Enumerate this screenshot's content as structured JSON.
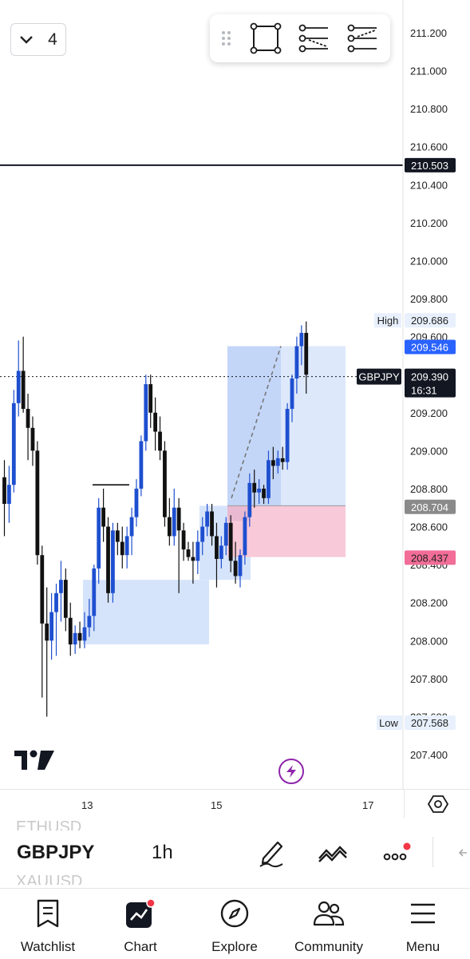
{
  "top_controls": {
    "interval_count": "4"
  },
  "drawing_toolbar": {
    "tools": [
      "drag-handle-icon",
      "rectangle-icon",
      "short-position-icon",
      "long-position-icon"
    ]
  },
  "price_axis": {
    "labels": [
      "211.200",
      "211.000",
      "210.800",
      "210.600",
      "210.400",
      "210.200",
      "210.000",
      "209.800",
      "209.600",
      "209.200",
      "209.000",
      "208.800",
      "208.600",
      "208.400",
      "208.200",
      "208.000",
      "207.800",
      "207.600",
      "207.400"
    ]
  },
  "price_tags": {
    "line_level": "210.503",
    "high_label": "High",
    "high_value": "209.686",
    "blue_level": "209.546",
    "symbol_tag": "GBPJPY",
    "last_price": "209.390",
    "countdown": "16:31",
    "gray_level": "208.704",
    "pink_level": "208.437",
    "low_label": "Low",
    "low_value": "207.568"
  },
  "time_axis": {
    "labels": [
      "13",
      "15",
      "17"
    ]
  },
  "symbol_bar": {
    "prev_symbol": "ETHUSD",
    "current_symbol": "GBPJPY",
    "next_symbol": "XAUUSD",
    "interval": "1h"
  },
  "bottom_nav": {
    "items": [
      {
        "label": "Watchlist",
        "icon": "watchlist-icon"
      },
      {
        "label": "Chart",
        "icon": "chart-icon"
      },
      {
        "label": "Explore",
        "icon": "compass-icon"
      },
      {
        "label": "Community",
        "icon": "community-icon"
      },
      {
        "label": "Menu",
        "icon": "menu-icon"
      }
    ]
  },
  "colors": {
    "up": "#1e4fd0",
    "down": "#111111",
    "accent_alert": "#f23645",
    "pink_zone": "#f8c7d6",
    "blue_zone": "#cfe0fb"
  },
  "chart_data": {
    "type": "candlestick",
    "symbol": "GBPJPY",
    "interval": "1h",
    "ylim": [
      207.4,
      211.2
    ],
    "candles": [
      {
        "o": 208.86,
        "h": 208.95,
        "l": 208.55,
        "c": 208.72
      },
      {
        "o": 208.72,
        "h": 208.92,
        "l": 208.62,
        "c": 208.82
      },
      {
        "o": 208.82,
        "h": 209.32,
        "l": 208.78,
        "c": 209.25
      },
      {
        "o": 209.25,
        "h": 209.58,
        "l": 209.18,
        "c": 209.42
      },
      {
        "o": 209.42,
        "h": 209.6,
        "l": 209.2,
        "c": 209.22
      },
      {
        "o": 209.22,
        "h": 209.3,
        "l": 208.95,
        "c": 209.12
      },
      {
        "o": 209.12,
        "h": 209.18,
        "l": 208.92,
        "c": 209.0
      },
      {
        "o": 209.0,
        "h": 209.05,
        "l": 208.4,
        "c": 208.45
      },
      {
        "o": 208.45,
        "h": 208.5,
        "l": 207.7,
        "c": 208.09
      },
      {
        "o": 208.09,
        "h": 208.28,
        "l": 207.6,
        "c": 208.0
      },
      {
        "o": 208.0,
        "h": 208.25,
        "l": 207.9,
        "c": 208.15
      },
      {
        "o": 208.15,
        "h": 208.3,
        "l": 207.92,
        "c": 208.25
      },
      {
        "o": 208.25,
        "h": 208.42,
        "l": 208.1,
        "c": 208.32
      },
      {
        "o": 208.32,
        "h": 208.38,
        "l": 208.05,
        "c": 208.12
      },
      {
        "o": 208.12,
        "h": 208.2,
        "l": 207.92,
        "c": 207.98
      },
      {
        "o": 207.98,
        "h": 208.08,
        "l": 207.93,
        "c": 208.04
      },
      {
        "o": 208.04,
        "h": 208.1,
        "l": 207.96,
        "c": 208.0
      },
      {
        "o": 208.0,
        "h": 208.15,
        "l": 207.96,
        "c": 208.07
      },
      {
        "o": 208.07,
        "h": 208.22,
        "l": 208.02,
        "c": 208.13
      },
      {
        "o": 208.13,
        "h": 208.4,
        "l": 208.05,
        "c": 208.38
      },
      {
        "o": 208.38,
        "h": 208.75,
        "l": 208.3,
        "c": 208.7
      },
      {
        "o": 208.7,
        "h": 208.8,
        "l": 208.52,
        "c": 208.6
      },
      {
        "o": 208.6,
        "h": 208.65,
        "l": 208.2,
        "c": 208.25
      },
      {
        "o": 208.25,
        "h": 208.62,
        "l": 208.2,
        "c": 208.58
      },
      {
        "o": 208.58,
        "h": 208.62,
        "l": 208.45,
        "c": 208.52
      },
      {
        "o": 208.52,
        "h": 208.6,
        "l": 208.38,
        "c": 208.45
      },
      {
        "o": 208.45,
        "h": 208.6,
        "l": 208.38,
        "c": 208.55
      },
      {
        "o": 208.55,
        "h": 208.7,
        "l": 208.45,
        "c": 208.65
      },
      {
        "o": 208.65,
        "h": 208.85,
        "l": 208.6,
        "c": 208.8
      },
      {
        "o": 208.8,
        "h": 209.08,
        "l": 208.76,
        "c": 209.05
      },
      {
        "o": 209.05,
        "h": 209.4,
        "l": 209.0,
        "c": 209.35
      },
      {
        "o": 209.35,
        "h": 209.4,
        "l": 209.12,
        "c": 209.2
      },
      {
        "o": 209.2,
        "h": 209.28,
        "l": 209.0,
        "c": 209.1
      },
      {
        "o": 209.1,
        "h": 209.18,
        "l": 208.95,
        "c": 209.0
      },
      {
        "o": 209.0,
        "h": 209.05,
        "l": 208.6,
        "c": 208.65
      },
      {
        "o": 208.65,
        "h": 208.75,
        "l": 208.5,
        "c": 208.55
      },
      {
        "o": 208.55,
        "h": 208.8,
        "l": 208.5,
        "c": 208.7
      },
      {
        "o": 208.7,
        "h": 208.75,
        "l": 208.25,
        "c": 208.58
      },
      {
        "o": 208.58,
        "h": 208.62,
        "l": 208.42,
        "c": 208.48
      },
      {
        "o": 208.48,
        "h": 208.52,
        "l": 208.42,
        "c": 208.44
      },
      {
        "o": 208.44,
        "h": 208.52,
        "l": 208.3,
        "c": 208.42
      },
      {
        "o": 208.42,
        "h": 208.58,
        "l": 208.35,
        "c": 208.52
      },
      {
        "o": 208.52,
        "h": 208.65,
        "l": 208.45,
        "c": 208.6
      },
      {
        "o": 208.6,
        "h": 208.72,
        "l": 208.55,
        "c": 208.68
      },
      {
        "o": 208.68,
        "h": 208.72,
        "l": 208.5,
        "c": 208.55
      },
      {
        "o": 208.55,
        "h": 208.62,
        "l": 208.28,
        "c": 208.43
      },
      {
        "o": 208.43,
        "h": 208.55,
        "l": 208.38,
        "c": 208.5
      },
      {
        "o": 208.5,
        "h": 208.65,
        "l": 208.45,
        "c": 208.62
      },
      {
        "o": 208.62,
        "h": 208.66,
        "l": 208.36,
        "c": 208.42
      },
      {
        "o": 208.42,
        "h": 208.52,
        "l": 208.3,
        "c": 208.34
      },
      {
        "o": 208.34,
        "h": 208.48,
        "l": 208.28,
        "c": 208.45
      },
      {
        "o": 208.45,
        "h": 208.68,
        "l": 208.4,
        "c": 208.65
      },
      {
        "o": 208.65,
        "h": 208.88,
        "l": 208.6,
        "c": 208.83
      },
      {
        "o": 208.83,
        "h": 208.9,
        "l": 208.7,
        "c": 208.78
      },
      {
        "o": 208.78,
        "h": 208.85,
        "l": 208.72,
        "c": 208.8
      },
      {
        "o": 208.8,
        "h": 208.82,
        "l": 208.72,
        "c": 208.75
      },
      {
        "o": 208.75,
        "h": 209.0,
        "l": 208.72,
        "c": 208.95
      },
      {
        "o": 208.95,
        "h": 209.02,
        "l": 208.85,
        "c": 208.92
      },
      {
        "o": 208.92,
        "h": 209.0,
        "l": 208.88,
        "c": 208.96
      },
      {
        "o": 208.96,
        "h": 209.02,
        "l": 208.9,
        "c": 208.94
      },
      {
        "o": 208.94,
        "h": 209.25,
        "l": 208.9,
        "c": 209.22
      },
      {
        "o": 209.22,
        "h": 209.4,
        "l": 209.15,
        "c": 209.38
      },
      {
        "o": 209.38,
        "h": 209.6,
        "l": 209.3,
        "c": 209.55
      },
      {
        "o": 209.55,
        "h": 209.66,
        "l": 209.45,
        "c": 209.62
      },
      {
        "o": 209.62,
        "h": 209.68,
        "l": 209.3,
        "c": 209.4
      }
    ]
  }
}
